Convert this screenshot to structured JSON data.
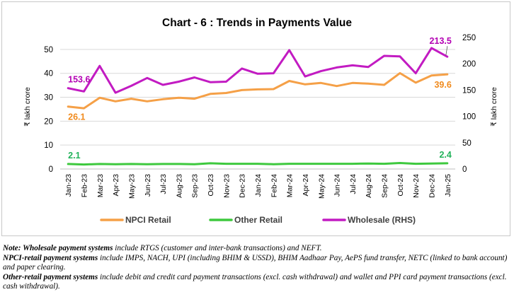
{
  "chart_data": {
    "type": "line",
    "title": "Chart - 6 : Trends in Payments Value",
    "ylabel_left": "₹ lakh crore",
    "ylabel_right": "₹ lakh crore",
    "ylim_left": [
      0,
      55
    ],
    "yticks_left": [
      0,
      10,
      20,
      30,
      40,
      50
    ],
    "ylim_right": [
      0,
      250
    ],
    "yticks_right": [
      0,
      50,
      100,
      150,
      200,
      250
    ],
    "grid": true,
    "legend_position": "bottom",
    "x": [
      "Jan-23",
      "Feb-23",
      "Mar-23",
      "Apr-23",
      "May-23",
      "Jun-23",
      "Jul-23",
      "Aug-23",
      "Sep-23",
      "Oct-23",
      "Nov-23",
      "Dec-23",
      "Jan-24",
      "Feb-24",
      "Mar-24",
      "Apr-24",
      "May-24",
      "Jun-24",
      "Jul-24",
      "Aug-24",
      "Sep-24",
      "Oct-24",
      "Nov-24",
      "Dec-24",
      "Jan-25"
    ],
    "series": [
      {
        "name": "NPCI Retail",
        "axis": "left",
        "color": "#f5a047",
        "values": [
          26.1,
          25.4,
          29.8,
          28.3,
          29.4,
          28.3,
          29.2,
          29.8,
          29.4,
          31.4,
          31.8,
          33.0,
          33.3,
          33.4,
          36.8,
          35.4,
          36.0,
          34.7,
          36.0,
          35.7,
          35.2,
          40.1,
          36.1,
          39.1,
          39.6
        ],
        "labels": [
          {
            "index": 0,
            "text": "26.1"
          },
          {
            "index": 24,
            "text": "39.6"
          }
        ]
      },
      {
        "name": "Other Retail",
        "axis": "left",
        "color": "#3ec93e",
        "values": [
          2.1,
          1.9,
          2.1,
          2.0,
          2.1,
          2.0,
          2.1,
          2.1,
          2.0,
          2.4,
          2.2,
          2.2,
          2.2,
          2.0,
          2.2,
          2.2,
          2.2,
          2.2,
          2.2,
          2.3,
          2.2,
          2.5,
          2.2,
          2.3,
          2.4
        ],
        "labels": [
          {
            "index": 0,
            "text": "2.1"
          },
          {
            "index": 24,
            "text": "2.4"
          }
        ]
      },
      {
        "name": "Wholesale (RHS)",
        "axis": "right",
        "color": "#c21bc2",
        "values": [
          153.6,
          147.5,
          196.0,
          145.0,
          158.0,
          173.0,
          160.0,
          166.0,
          174.0,
          165.0,
          166.0,
          191.0,
          181.0,
          182.0,
          226.0,
          176.0,
          186.0,
          193.0,
          197.0,
          194.0,
          215.0,
          214.0,
          182.0,
          230.0,
          213.5
        ],
        "labels": [
          {
            "index": 0,
            "text": "153.6"
          },
          {
            "index": 24,
            "text": "213.5"
          }
        ]
      }
    ]
  },
  "notes": [
    {
      "bold": "Note: Wholesale payment systems",
      "text": " include RTGS (customer and inter-bank transactions) and NEFT."
    },
    {
      "bold": "NPCI-retail payment systems",
      "text": " include IMPS, NACH, UPI (including BHIM & USSD), BHIM Aadhaar Pay, AePS fund transfer, NETC (linked to bank account) and paper clearing."
    },
    {
      "bold": "Other-retail payment systems",
      "text": " include debit and credit card payment transactions (excl. cash withdrawal) and wallet and PPI card payment transactions (excl. cash withdrawal)."
    }
  ]
}
